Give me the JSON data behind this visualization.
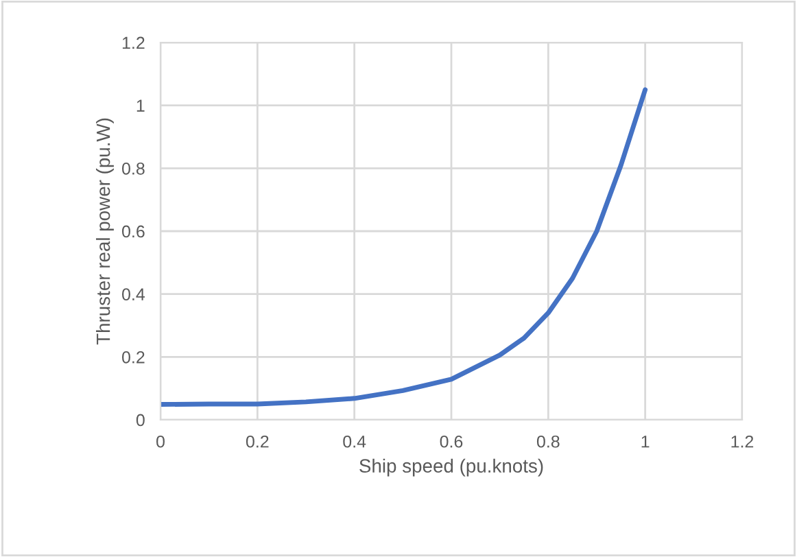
{
  "chart_data": {
    "type": "line",
    "xlabel": "Ship speed (pu.knots)",
    "ylabel": "Thruster real power (pu.W)",
    "x": [
      0,
      0.1,
      0.2,
      0.3,
      0.4,
      0.5,
      0.6,
      0.7,
      0.75,
      0.8,
      0.85,
      0.9,
      0.95,
      1.0
    ],
    "series": [
      {
        "color": "#4472c4",
        "values": [
          0.049,
          0.05,
          0.05,
          0.057,
          0.068,
          0.093,
          0.129,
          0.206,
          0.26,
          0.34,
          0.45,
          0.6,
          0.81,
          1.05
        ]
      }
    ],
    "xlim": [
      0,
      1.2
    ],
    "xticks": [
      0,
      0.2,
      0.4,
      0.6,
      0.8,
      1,
      1.2
    ],
    "ylim": [
      0,
      1.2
    ],
    "yticks": [
      0,
      0.2,
      0.4,
      0.6,
      0.8,
      1,
      1.2
    ],
    "grid": true,
    "marker": "none",
    "line_style": "solid"
  }
}
